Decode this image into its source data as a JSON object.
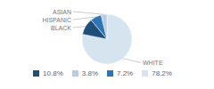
{
  "chart_data": {
    "type": "pie",
    "categories": [
      "WHITE",
      "BLACK",
      "HISPANIC",
      "ASIAN"
    ],
    "values": [
      78.2,
      10.8,
      7.2,
      3.8
    ],
    "value_labels": [
      "78.2%",
      "10.8%",
      "7.2%",
      "3.8%"
    ],
    "colors": [
      "#d6e4f0",
      "#1f4e79",
      "#2e75b6",
      "#b8cce4"
    ],
    "legend": "bottom"
  }
}
